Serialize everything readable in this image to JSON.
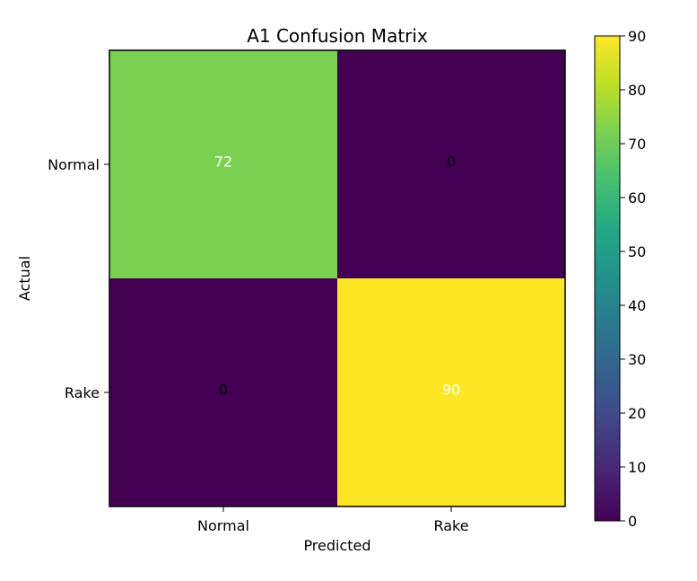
{
  "chart_data": {
    "type": "heatmap",
    "title": "A1 Confusion Matrix",
    "xlabel": "Predicted",
    "ylabel": "Actual",
    "x_categories": [
      "Normal",
      "Rake"
    ],
    "y_categories": [
      "Normal",
      "Rake"
    ],
    "values": [
      [
        72,
        0
      ],
      [
        0,
        90
      ]
    ],
    "colormap": "viridis",
    "color_range": [
      0,
      90
    ],
    "colorbar_ticks": [
      "0",
      "10",
      "20",
      "30",
      "40",
      "50",
      "60",
      "70",
      "80",
      "90"
    ],
    "cell_text_colors": [
      [
        "#ffffff",
        "#000000"
      ],
      [
        "#000000",
        "#ffffff"
      ]
    ],
    "cell_colors": [
      [
        "#7ad151",
        "#440154"
      ],
      [
        "#440154",
        "#fde725"
      ]
    ],
    "grid": false
  }
}
